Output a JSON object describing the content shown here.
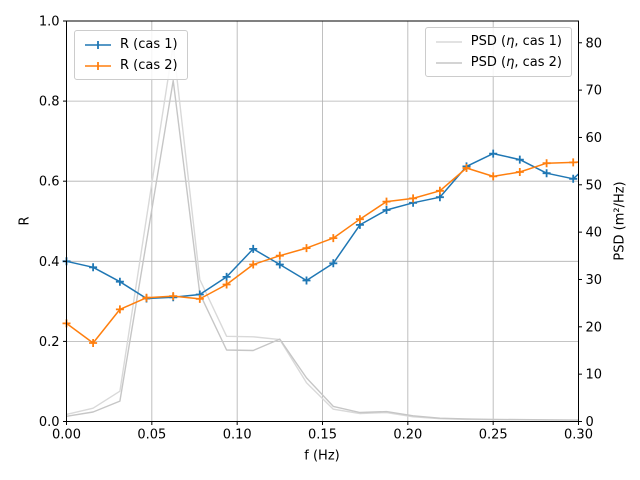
{
  "chart_data": {
    "type": "line",
    "title": "",
    "xlabel": "f (Hz)",
    "ylabel_left": "R",
    "ylabel_right": "PSD (m²/Hz)",
    "xlim": [
      0.0,
      0.3
    ],
    "ylim_left": [
      0.0,
      1.0
    ],
    "ylim_right": [
      0.0,
      84.6
    ],
    "grid": true,
    "legend_positions": [
      "upper left",
      "upper right"
    ],
    "x_ticks": [
      0.0,
      0.05,
      0.1,
      0.15,
      0.2,
      0.25,
      0.3
    ],
    "x_tick_labels": [
      "0.00",
      "0.05",
      "0.10",
      "0.15",
      "0.20",
      "0.25",
      "0.30"
    ],
    "y_ticks_left": [
      0.0,
      0.2,
      0.4,
      0.6,
      0.8,
      1.0
    ],
    "y_tick_labels_left": [
      "0.0",
      "0.2",
      "0.4",
      "0.6",
      "0.8",
      "1.0"
    ],
    "y_ticks_right": [
      0,
      10,
      20,
      30,
      40,
      50,
      60,
      70,
      80
    ],
    "y_tick_labels_right": [
      "0",
      "10",
      "20",
      "30",
      "40",
      "50",
      "60",
      "70",
      "80"
    ],
    "x": [
      0.0,
      0.0156,
      0.0313,
      0.0469,
      0.0625,
      0.0781,
      0.0938,
      0.1094,
      0.125,
      0.1406,
      0.1563,
      0.1719,
      0.1875,
      0.2031,
      0.2188,
      0.2344,
      0.25,
      0.2656,
      0.2813,
      0.2969
    ],
    "series": [
      {
        "name": "R (cas 1)",
        "axis": "left",
        "color": "#1f77b4",
        "marker": "plus",
        "linewidth": 1.5,
        "values": [
          0.4,
          0.385,
          0.349,
          0.307,
          0.31,
          0.317,
          0.361,
          0.431,
          0.392,
          0.352,
          0.395,
          0.491,
          0.528,
          0.546,
          0.56,
          0.637,
          0.669,
          0.654,
          0.62,
          0.606
        ],
        "edge_extension": {
          "x": 0.3,
          "y": 0.618
        }
      },
      {
        "name": "R (cas 2)",
        "axis": "left",
        "color": "#ff7f0e",
        "marker": "plus",
        "linewidth": 1.5,
        "values": [
          0.245,
          0.196,
          0.28,
          0.309,
          0.313,
          0.306,
          0.342,
          0.392,
          0.414,
          0.433,
          0.458,
          0.505,
          0.549,
          0.557,
          0.576,
          0.633,
          0.612,
          0.623,
          0.645,
          0.647
        ],
        "edge_extension": {
          "x": 0.3,
          "y": 0.648
        }
      },
      {
        "name": "PSD (η, cas 1)",
        "axis": "right",
        "color": "#d9d9d9",
        "marker": "none",
        "linewidth": 1.4,
        "values": [
          1.5,
          2.8,
          6.4,
          43.0,
          79.5,
          30.0,
          18.0,
          17.9,
          17.3,
          8.2,
          2.6,
          1.7,
          1.9,
          1.0,
          0.6,
          0.45,
          0.4,
          0.35,
          0.3,
          0.3
        ],
        "edge_extension": {
          "x": 0.3,
          "y": 0.3
        }
      },
      {
        "name": "PSD (η, cas 2)",
        "axis": "right",
        "color": "#c6c6c6",
        "marker": "none",
        "linewidth": 1.4,
        "values": [
          1.1,
          2.0,
          4.3,
          38.0,
          72.0,
          27.0,
          15.1,
          15.0,
          17.4,
          9.2,
          3.2,
          1.9,
          2.1,
          1.2,
          0.7,
          0.55,
          0.45,
          0.4,
          0.35,
          0.3
        ],
        "edge_extension": {
          "x": 0.3,
          "y": 0.3
        }
      }
    ],
    "legends": {
      "r_legend": {
        "entries": [
          {
            "label": "R (cas 1)",
            "color": "#1f77b4"
          },
          {
            "label": "R (cas 2)",
            "color": "#ff7f0e"
          }
        ]
      },
      "psd_legend": {
        "entries": [
          {
            "label_prefix": "PSD (",
            "label_eta": "η",
            "label_suffix": ", cas 1)",
            "color": "#d9d9d9"
          },
          {
            "label_prefix": "PSD (",
            "label_eta": "η",
            "label_suffix": ", cas 2)",
            "color": "#c6c6c6"
          }
        ]
      }
    }
  }
}
